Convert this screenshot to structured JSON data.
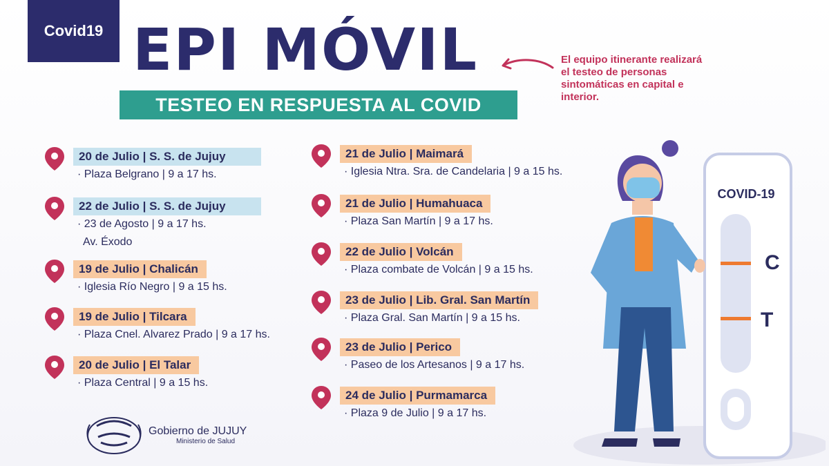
{
  "header": {
    "badge": "Covid19",
    "title": "EPI MÓVIL",
    "subtitle": "TESTEO EN RESPUESTA AL COVID",
    "note": "El equipo itinerante realizará el testeo de personas sintomáticas en capital e interior."
  },
  "left_entries": [
    {
      "label": "20 de Julio | S. S. de Jujuy",
      "detail": "· Plaza Belgrano |  9 a 17 hs.",
      "detail2": ""
    },
    {
      "label": "22 de Julio | S. S. de Jujuy",
      "detail": "· 23 de Agosto |  9 a 17 hs.",
      "detail2": "Av. Éxodo"
    },
    {
      "label": "19 de Julio | Chalicán",
      "detail": "· Iglesia Río Negro | 9 a 15 hs.",
      "detail2": ""
    },
    {
      "label": "19 de Julio | Tilcara",
      "detail": "· Plaza Cnel. Alvarez Prado | 9 a 17 hs.",
      "detail2": ""
    },
    {
      "label": "20 de Julio | El Talar",
      "detail": "· Plaza Central | 9 a 15 hs.",
      "detail2": ""
    }
  ],
  "right_entries": [
    {
      "label": "21 de Julio | Maimará",
      "detail": "· Iglesia Ntra. Sra. de Candelaria | 9 a 15 hs."
    },
    {
      "label": "21 de Julio | Humahuaca",
      "detail": "·  Plaza San Martín | 9 a 17 hs."
    },
    {
      "label": "22 de Julio | Volcán",
      "detail": "· Plaza combate de Volcán | 9 a 15 hs."
    },
    {
      "label": "23 de Julio | Lib. Gral. San Martín",
      "detail": "·  Plaza  Gral. San Martín |  9 a 15 hs."
    },
    {
      "label": "23 de Julio | Perico",
      "detail": "· Paseo de los Artesanos | 9 a 17 hs."
    },
    {
      "label": "24 de Julio | Purmamarca",
      "detail": "·  Plaza 9 de Julio | 9 a 17 hs."
    }
  ],
  "test_card": {
    "title": "COVID-19",
    "c_label": "C",
    "t_label": "T"
  },
  "footer": {
    "org": "Gobierno de JUJUY",
    "ministry": "Ministerio de Salud"
  },
  "colors": {
    "navy": "#2c2c6c",
    "teal": "#2e9e8f",
    "pin": "#c2325a",
    "label_blue": "#c8e3ef",
    "label_orange": "#f8c9a0"
  }
}
